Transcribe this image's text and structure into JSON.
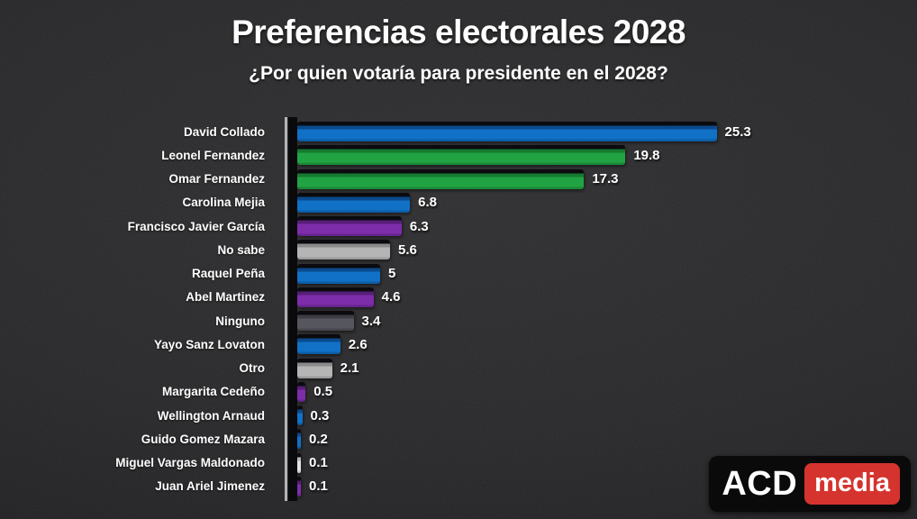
{
  "title": "Preferencias electorales 2028",
  "subtitle": "¿Por quien votaría para presidente en el 2028?",
  "logo": {
    "left_text": "ACD",
    "right_text": "media",
    "right_bg_color": "#d5342e",
    "left_bg_color": "#0a0a0a"
  },
  "palette": {
    "blue": {
      "base": "#1171c6",
      "bevel": "#0a4a8c",
      "edge": "#0d5da6"
    },
    "green": {
      "base": "#21a343",
      "bevel": "#157a2f",
      "edge": "#1a8a38"
    },
    "purple": {
      "base": "#7e2daa",
      "bevel": "#571e78",
      "edge": "#67248c"
    },
    "silver": {
      "base": "#b5b5b5",
      "bevel": "#8a8a8a",
      "edge": "#9c9c9c"
    },
    "gray": {
      "base": "#56565e",
      "bevel": "#3c3c42",
      "edge": "#47474d"
    },
    "white": {
      "base": "#e2e2e2",
      "bevel": "#b5b5b5",
      "edge": "#c9c9c9"
    },
    "bar_top_shadow": "#0b0b0f",
    "background": "#262628",
    "text": "#ffffff",
    "axis_line": "#b3b3b3",
    "axis_shadow": "#0a0a0d"
  },
  "chart_data": {
    "type": "bar",
    "orientation": "horizontal",
    "title": "Preferencias electorales 2028",
    "subtitle": "¿Por quien votaría para presidente en el 2028?",
    "xlabel": "",
    "ylabel": "",
    "xlim": [
      0,
      27.5
    ],
    "grid": false,
    "legend": false,
    "categories": [
      "David Collado",
      "Leonel Fernandez",
      "Omar Fernandez",
      "Carolina Mejia",
      "Francisco Javier García",
      "No sabe",
      "Raquel Peña",
      "Abel Martinez",
      "Ninguno",
      "Yayo Sanz Lovaton",
      "Otro",
      "Margarita Cedeño",
      "Wellington Arnaud",
      "Guido Gomez Mazara",
      "Miguel Vargas Maldonado",
      "Juan Ariel Jimenez"
    ],
    "values": [
      25.3,
      19.8,
      17.3,
      6.8,
      6.3,
      5.6,
      5,
      4.6,
      3.4,
      2.6,
      2.1,
      0.5,
      0.3,
      0.2,
      0.1,
      0.1
    ],
    "value_labels": [
      "25.3",
      "19.8",
      "17.3",
      "6.8",
      "6.3",
      "5.6",
      "5",
      "4.6",
      "3.4",
      "2.6",
      "2.1",
      "0.5",
      "0.3",
      "0.2",
      "0.1",
      "0.1"
    ],
    "bar_color_keys": [
      "blue",
      "green",
      "green",
      "blue",
      "purple",
      "silver",
      "blue",
      "purple",
      "gray",
      "blue",
      "silver",
      "purple",
      "blue",
      "blue",
      "white",
      "purple"
    ]
  }
}
